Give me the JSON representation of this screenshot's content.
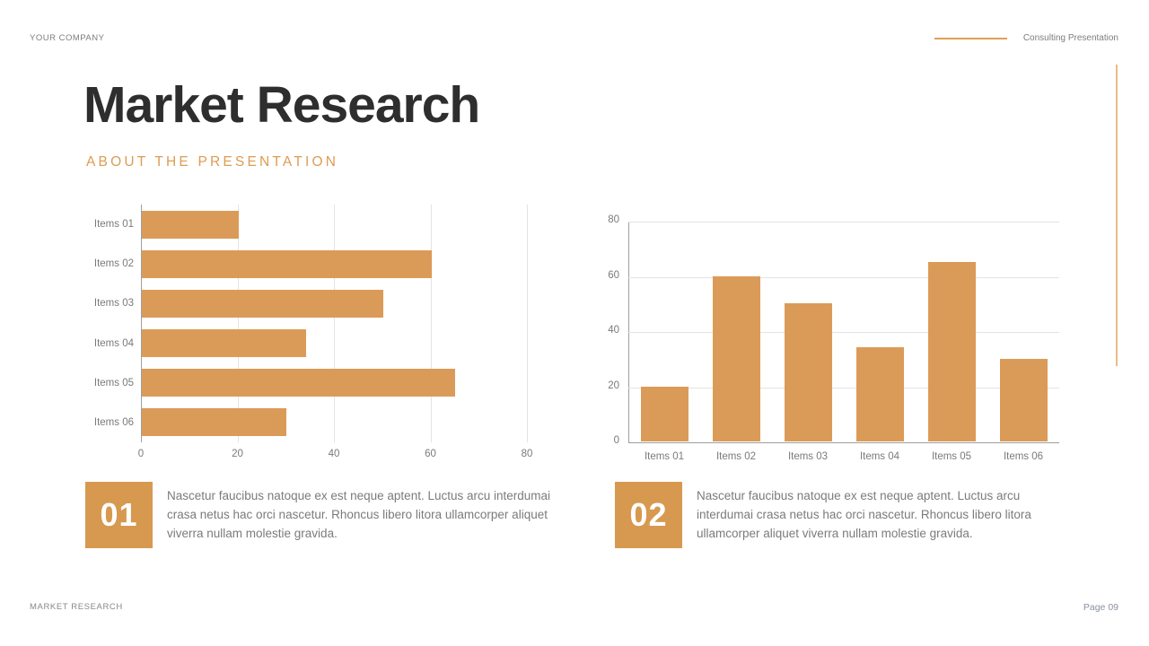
{
  "header": {
    "company": "YOUR COMPANY",
    "tagline": "Consulting Presentation"
  },
  "title": "Market Research",
  "subtitle": "ABOUT THE PRESENTATION",
  "colors": {
    "accent": "#DB9B58",
    "badge": "#D7994F",
    "title_text": "#2E2E2E",
    "body_text": "#7B7B7B",
    "grid": "#E3E3E3",
    "axis": "#9E9E9E"
  },
  "chart_data": [
    {
      "type": "bar",
      "orientation": "horizontal",
      "title": "",
      "categories": [
        "Items 01",
        "Items 02",
        "Items 03",
        "Items 04",
        "Items 05",
        "Items 06"
      ],
      "values": [
        20,
        60,
        50,
        34,
        65,
        30
      ],
      "xlabel": "",
      "ylabel": "",
      "xlim": [
        0,
        80
      ],
      "ticks": [
        0,
        20,
        40,
        60,
        80
      ],
      "grid": true,
      "legend": false,
      "bar_color": "#DB9B58"
    },
    {
      "type": "bar",
      "orientation": "vertical",
      "title": "",
      "categories": [
        "Items 01",
        "Items 02",
        "Items 03",
        "Items 04",
        "Items 05",
        "Items 06"
      ],
      "values": [
        20,
        60,
        50,
        34,
        65,
        30
      ],
      "xlabel": "",
      "ylabel": "",
      "ylim": [
        0,
        80
      ],
      "ticks": [
        0,
        20,
        40,
        60,
        80
      ],
      "grid": true,
      "legend": false,
      "bar_color": "#DB9B58"
    }
  ],
  "callouts": [
    {
      "number": "01",
      "text": "Nascetur faucibus natoque ex est neque aptent. Luctus arcu interdumai crasa netus hac orci nascetur. Rhoncus libero litora ullamcorper aliquet viverra nullam molestie gravida."
    },
    {
      "number": "02",
      "text": "Nascetur faucibus natoque ex est neque aptent. Luctus arcu interdumai crasa netus hac orci nascetur. Rhoncus libero litora ullamcorper aliquet viverra nullam molestie gravida."
    }
  ],
  "footer": {
    "left": "MARKET RESEARCH",
    "right": "Page 09"
  }
}
